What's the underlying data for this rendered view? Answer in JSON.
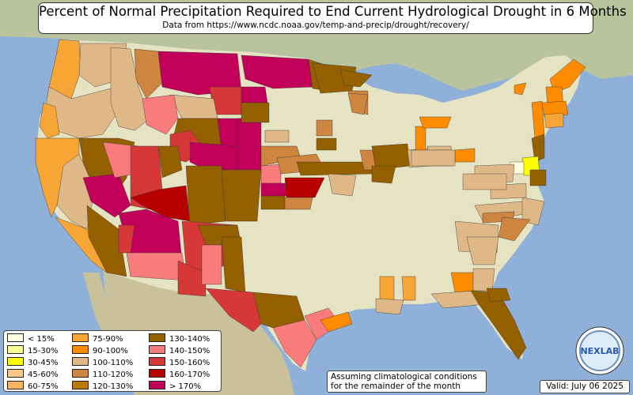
{
  "title": "Percent of Normal Precipitation Required to End Current Hydrological Drought in 6 Months",
  "subtitle": "Data from https://www.ncdc.noaa.gov/temp-and-precip/drought/recovery/",
  "legend": [
    {
      "label": "< 15%",
      "color": "#ffffe0"
    },
    {
      "label": "15-30%",
      "color": "#ffff99"
    },
    {
      "label": "30-45%",
      "color": "#ffff00"
    },
    {
      "label": "45-60%",
      "color": "#f5c98a"
    },
    {
      "label": "60-75%",
      "color": "#f7b65e"
    },
    {
      "label": "75-90%",
      "color": "#f7a534"
    },
    {
      "label": "90-100%",
      "color": "#ff8c00"
    },
    {
      "label": "100-110%",
      "color": "#deb887"
    },
    {
      "label": "110-120%",
      "color": "#cd853f"
    },
    {
      "label": "120-130%",
      "color": "#b87a08"
    },
    {
      "label": "130-140%",
      "color": "#946000"
    },
    {
      "label": "140-150%",
      "color": "#f87c7c"
    },
    {
      "label": "150-160%",
      "color": "#d63838"
    },
    {
      "label": "160-170%",
      "color": "#b80000"
    },
    {
      "label": "> 170%",
      "color": "#c2005a"
    }
  ],
  "note": "Assuming climatological conditions for the remainder of the month",
  "valid": "Valid: July 06 2025",
  "logo_text": "NEXLAB"
}
